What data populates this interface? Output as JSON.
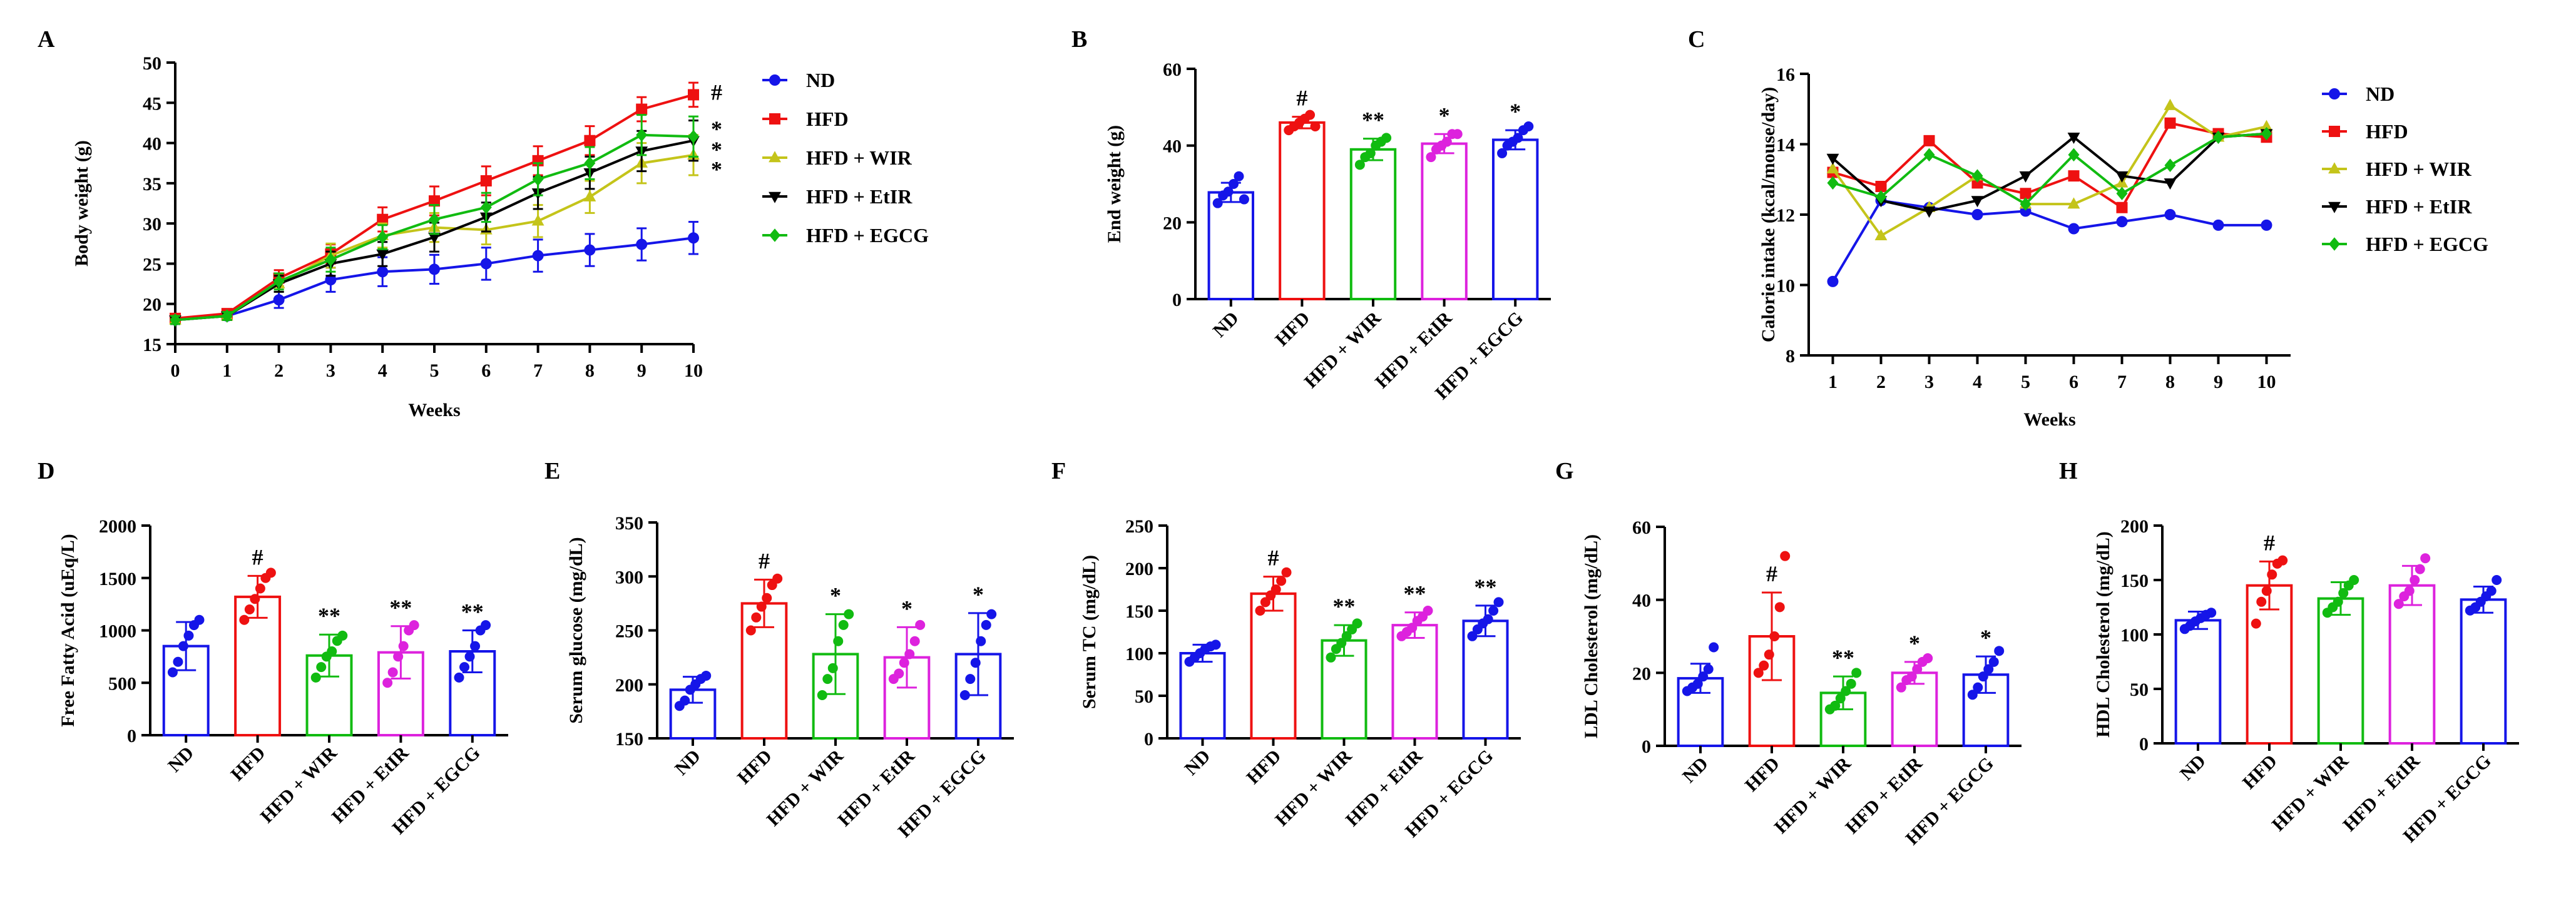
{
  "colors": {
    "ND": "#1515e8",
    "HFD": "#ee1111",
    "WIR": "#c4c41a",
    "EtIR": "#000000",
    "EGCG": "#11bb11",
    "EtIR_bar": "#dd22dd"
  },
  "chart_data": [
    {
      "id": "A",
      "type": "line",
      "title": "",
      "xlabel": "Weeks",
      "ylabel": "Body weight (g)",
      "x": [
        0,
        1,
        2,
        3,
        4,
        5,
        6,
        7,
        8,
        9,
        10
      ],
      "xticks": [
        "0",
        "1",
        "2",
        "3",
        "4",
        "5",
        "6",
        "7",
        "8",
        "9",
        "10"
      ],
      "ylim": [
        15,
        50
      ],
      "yticks": [
        "15",
        "20",
        "25",
        "30",
        "35",
        "40",
        "45",
        "50"
      ],
      "legend": {
        "placement": "right"
      },
      "series": [
        {
          "name": "ND",
          "color_key": "ND",
          "marker": "circle",
          "values": [
            18,
            18.5,
            20.5,
            23,
            24,
            24.3,
            25,
            26,
            26.7,
            27.4,
            28.2
          ],
          "err": [
            0.5,
            0.5,
            1,
            1.5,
            1.8,
            1.8,
            2,
            2,
            2,
            2,
            2
          ]
        },
        {
          "name": "HFD",
          "color_key": "HFD",
          "marker": "square",
          "values": [
            18.2,
            18.8,
            23.2,
            26.2,
            30.5,
            32.8,
            35.3,
            37.8,
            40.3,
            44.2,
            46
          ],
          "err": [
            0.5,
            0.5,
            1,
            1.2,
            1.5,
            1.8,
            1.8,
            1.8,
            1.8,
            1.5,
            1.5
          ]
        },
        {
          "name": "HFD + WIR",
          "color_key": "WIR",
          "marker": "triangle-up",
          "values": [
            18,
            18.5,
            22.5,
            26,
            28.5,
            29.5,
            29.2,
            30.3,
            33.3,
            37.5,
            38.5
          ],
          "err": [
            0.5,
            0.5,
            1,
            1.5,
            1.5,
            1.8,
            1.8,
            2,
            2,
            2.5,
            2.5
          ]
        },
        {
          "name": "HFD + EtIR",
          "color_key": "EtIR",
          "marker": "triangle-down",
          "values": [
            18,
            18.5,
            22.5,
            25,
            26.2,
            28.3,
            30.8,
            33.8,
            36.3,
            39,
            40.3
          ],
          "err": [
            0.5,
            0.5,
            1,
            1.5,
            1.5,
            1.8,
            1.8,
            2,
            2,
            2.5,
            2.5
          ]
        },
        {
          "name": "HFD + EGCG",
          "color_key": "EGCG",
          "marker": "diamond",
          "values": [
            18,
            18.5,
            22.8,
            25.5,
            28.3,
            30.5,
            32,
            35.5,
            37.5,
            41,
            40.8
          ],
          "err": [
            0.5,
            0.5,
            1,
            1.5,
            1.5,
            1.8,
            1.8,
            2,
            2,
            2.5,
            2.5
          ]
        }
      ],
      "annotations": [
        "#",
        "*",
        "*",
        "*"
      ]
    },
    {
      "id": "B",
      "type": "bar",
      "title": "",
      "xlabel": "",
      "ylabel": "End weight (g)",
      "categories": [
        "ND",
        "HFD",
        "HFD + WIR",
        "HFD + EtIR",
        "HFD + EGCG"
      ],
      "color_keys": [
        "ND",
        "HFD",
        "EGCG",
        "EtIR_bar",
        "ND"
      ],
      "values": [
        27.8,
        46,
        39,
        40.5,
        41.5
      ],
      "err": [
        2.5,
        1.5,
        2.8,
        2.5,
        2.5
      ],
      "points": [
        [
          25,
          27,
          28,
          30,
          32,
          26
        ],
        [
          44,
          45,
          46,
          47,
          48,
          45
        ],
        [
          35,
          37,
          38,
          40,
          41,
          42
        ],
        [
          37,
          39,
          40,
          41,
          43,
          43
        ],
        [
          38,
          40,
          41,
          42,
          44,
          45
        ]
      ],
      "ylim": [
        0,
        60
      ],
      "yticks": [
        "0",
        "20",
        "40",
        "60"
      ],
      "sig": [
        "",
        "#",
        "**",
        "*",
        "*"
      ]
    },
    {
      "id": "C",
      "type": "line",
      "title": "",
      "xlabel": "Weeks",
      "ylabel": "Calorie intake (kcal/mouse/day)",
      "x": [
        1,
        2,
        3,
        4,
        5,
        6,
        7,
        8,
        9,
        10
      ],
      "xticks": [
        "1",
        "2",
        "3",
        "4",
        "5",
        "6",
        "7",
        "8",
        "9",
        "10"
      ],
      "ylim": [
        8,
        16
      ],
      "yticks": [
        "8",
        "10",
        "12",
        "14",
        "16"
      ],
      "legend": {
        "placement": "right"
      },
      "series": [
        {
          "name": "ND",
          "color_key": "ND",
          "marker": "circle",
          "values": [
            10.1,
            12.4,
            12.2,
            12.0,
            12.1,
            11.6,
            11.8,
            12.0,
            11.7,
            11.7
          ]
        },
        {
          "name": "HFD",
          "color_key": "HFD",
          "marker": "square",
          "values": [
            13.2,
            12.8,
            14.1,
            12.9,
            12.6,
            13.1,
            12.2,
            14.6,
            14.3,
            14.2
          ]
        },
        {
          "name": "HFD + WIR",
          "color_key": "WIR",
          "marker": "triangle-up",
          "values": [
            13.3,
            11.4,
            12.2,
            13.1,
            12.3,
            12.3,
            12.9,
            15.1,
            14.2,
            14.5
          ]
        },
        {
          "name": "HFD + EtIR",
          "color_key": "EtIR",
          "marker": "triangle-down",
          "values": [
            13.6,
            12.4,
            12.1,
            12.4,
            13.1,
            14.2,
            13.1,
            12.9,
            14.2,
            14.3
          ]
        },
        {
          "name": "HFD + EGCG",
          "color_key": "EGCG",
          "marker": "diamond",
          "values": [
            12.9,
            12.5,
            13.7,
            13.1,
            12.3,
            13.7,
            12.6,
            13.4,
            14.2,
            14.3
          ]
        }
      ]
    },
    {
      "id": "D",
      "type": "bar",
      "title": "",
      "xlabel": "",
      "ylabel": "Free Fatty Acid (uEq/L)",
      "categories": [
        "ND",
        "HFD",
        "HFD + WIR",
        "HFD + EtIR",
        "HFD + EGCG"
      ],
      "color_keys": [
        "ND",
        "HFD",
        "EGCG",
        "EtIR_bar",
        "ND"
      ],
      "values": [
        850,
        1320,
        760,
        790,
        800
      ],
      "err": [
        230,
        200,
        200,
        250,
        200
      ],
      "points": [
        [
          600,
          700,
          850,
          950,
          1050,
          1100
        ],
        [
          1100,
          1200,
          1300,
          1400,
          1500,
          1550
        ],
        [
          550,
          650,
          750,
          800,
          900,
          950
        ],
        [
          500,
          600,
          750,
          850,
          1000,
          1050
        ],
        [
          550,
          650,
          750,
          850,
          1000,
          1050
        ]
      ],
      "ylim": [
        0,
        2000
      ],
      "yticks": [
        "0",
        "500",
        "1000",
        "1500",
        "2000"
      ],
      "sig": [
        "",
        "#",
        "**",
        "**",
        "**"
      ]
    },
    {
      "id": "E",
      "type": "bar",
      "title": "",
      "xlabel": "",
      "ylabel": "Serum glucose (mg/dL)",
      "categories": [
        "ND",
        "HFD",
        "HFD + WIR",
        "HFD + EtIR",
        "HFD + EGCG"
      ],
      "color_keys": [
        "ND",
        "HFD",
        "EGCG",
        "EtIR_bar",
        "ND"
      ],
      "values": [
        195,
        275,
        228,
        225,
        228
      ],
      "err": [
        12,
        22,
        37,
        28,
        38
      ],
      "points": [
        [
          180,
          185,
          195,
          200,
          205,
          208
        ],
        [
          250,
          262,
          272,
          280,
          292,
          298
        ],
        [
          190,
          205,
          215,
          240,
          255,
          265
        ],
        [
          205,
          210,
          220,
          228,
          240,
          255
        ],
        [
          190,
          205,
          220,
          240,
          255,
          265
        ]
      ],
      "ylim": [
        150,
        350
      ],
      "yticks": [
        "150",
        "200",
        "250",
        "300",
        "350"
      ],
      "sig": [
        "",
        "#",
        "*",
        "*",
        "*"
      ]
    },
    {
      "id": "F",
      "type": "bar",
      "title": "",
      "xlabel": "",
      "ylabel": "Serum TC (mg/dL)",
      "categories": [
        "ND",
        "HFD",
        "HFD + WIR",
        "HFD + EtIR",
        "HFD + EGCG"
      ],
      "color_keys": [
        "ND",
        "HFD",
        "EGCG",
        "EtIR_bar",
        "ND"
      ],
      "values": [
        100,
        170,
        115,
        133,
        138
      ],
      "err": [
        10,
        20,
        18,
        15,
        18
      ],
      "points": [
        [
          90,
          95,
          100,
          105,
          108,
          110
        ],
        [
          150,
          160,
          168,
          175,
          185,
          195
        ],
        [
          95,
          105,
          112,
          120,
          128,
          135
        ],
        [
          120,
          125,
          130,
          138,
          143,
          150
        ],
        [
          120,
          128,
          135,
          140,
          150,
          160
        ]
      ],
      "ylim": [
        0,
        250
      ],
      "yticks": [
        "0",
        "50",
        "100",
        "150",
        "200",
        "250"
      ],
      "sig": [
        "",
        "#",
        "**",
        "**",
        "**"
      ]
    },
    {
      "id": "G",
      "type": "bar",
      "title": "",
      "xlabel": "",
      "ylabel": "LDL Cholesterol (mg/dL)",
      "categories": [
        "ND",
        "HFD",
        "HFD + WIR",
        "HFD + EtIR",
        "HFD + EGCG"
      ],
      "color_keys": [
        "ND",
        "HFD",
        "EGCG",
        "EtIR_bar",
        "ND"
      ],
      "values": [
        18.5,
        30,
        14.5,
        20,
        19.5
      ],
      "err": [
        4,
        12,
        4.5,
        3,
        5
      ],
      "points": [
        [
          15,
          16,
          17,
          19,
          21,
          27
        ],
        [
          20,
          22,
          25,
          30,
          38,
          52
        ],
        [
          10,
          11,
          13,
          15,
          17,
          20
        ],
        [
          16,
          18,
          19,
          21,
          23,
          24
        ],
        [
          14,
          16,
          19,
          21,
          23,
          26
        ]
      ],
      "ylim": [
        0,
        60
      ],
      "yticks": [
        "0",
        "20",
        "40",
        "60"
      ],
      "sig": [
        "",
        "#",
        "**",
        "*",
        "*"
      ]
    },
    {
      "id": "H",
      "type": "bar",
      "title": "",
      "xlabel": "",
      "ylabel": "HDL Cholesterol (mg/dL)",
      "categories": [
        "ND",
        "HFD",
        "HFD + WIR",
        "HFD + EtIR",
        "HFD + EGCG"
      ],
      "color_keys": [
        "ND",
        "HFD",
        "EGCG",
        "EtIR_bar",
        "ND"
      ],
      "values": [
        113,
        145,
        133,
        145,
        132
      ],
      "err": [
        8,
        22,
        15,
        18,
        12
      ],
      "points": [
        [
          105,
          108,
          112,
          115,
          118,
          120
        ],
        [
          110,
          130,
          140,
          155,
          165,
          168
        ],
        [
          120,
          125,
          130,
          138,
          145,
          150
        ],
        [
          128,
          135,
          140,
          150,
          160,
          170
        ],
        [
          122,
          125,
          130,
          135,
          140,
          150
        ]
      ],
      "ylim": [
        0,
        200
      ],
      "yticks": [
        "0",
        "50",
        "100",
        "150",
        "200"
      ],
      "sig": [
        "",
        "#",
        "",
        "",
        ""
      ]
    }
  ]
}
